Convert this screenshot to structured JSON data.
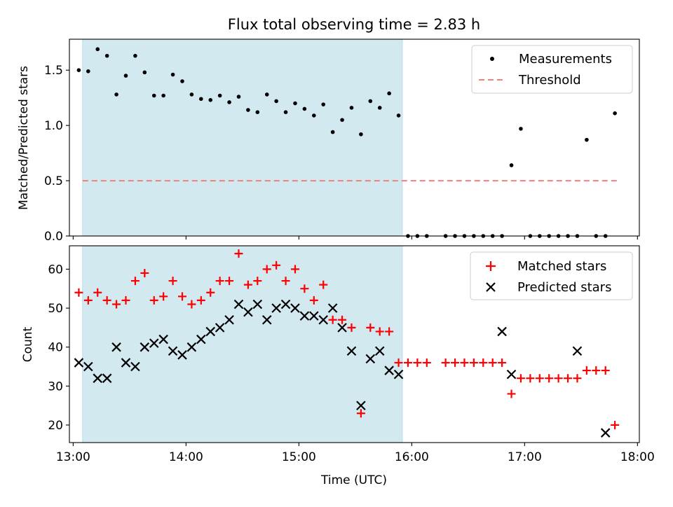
{
  "chart_data": [
    {
      "type": "scatter",
      "title": "Flux total observing time = 2.83 h",
      "ylabel": "Matched/Predicted stars",
      "xlabel": "",
      "xlim": [
        "12:58",
        "18:01"
      ],
      "ylim": [
        0,
        1.78
      ],
      "x_ticks": [
        "13:00",
        "14:00",
        "15:00",
        "16:00",
        "17:00",
        "18:00"
      ],
      "y_ticks": [
        0,
        0.5,
        1.0,
        1.5
      ],
      "y_tick_labels": [
        "0.0",
        "0.5",
        "1.0",
        "1.5"
      ],
      "shaded_region": {
        "x": [
          "13:05",
          "15:55"
        ],
        "color": "#d3e9f0"
      },
      "threshold": {
        "name": "Threshold",
        "y": 0.5,
        "x": [
          "13:05",
          "17:50"
        ],
        "color": "#f08080"
      },
      "legend": {
        "placement": "top-right",
        "entries": [
          "Measurements",
          "Threshold"
        ]
      },
      "series": [
        {
          "name": "Measurements",
          "marker": "dot",
          "color": "#000000",
          "x": [
            "13:03",
            "13:08",
            "13:13",
            "13:18",
            "13:23",
            "13:28",
            "13:33",
            "13:38",
            "13:43",
            "13:48",
            "13:53",
            "13:58",
            "14:03",
            "14:08",
            "14:13",
            "14:18",
            "14:23",
            "14:28",
            "14:33",
            "14:38",
            "14:43",
            "14:48",
            "14:53",
            "14:58",
            "15:03",
            "15:08",
            "15:13",
            "15:18",
            "15:23",
            "15:28",
            "15:33",
            "15:38",
            "15:43",
            "15:48",
            "15:53",
            "15:58",
            "16:03",
            "16:08",
            "16:18",
            "16:23",
            "16:28",
            "16:33",
            "16:38",
            "16:43",
            "16:48",
            "16:53",
            "16:58",
            "17:03",
            "17:08",
            "17:13",
            "17:18",
            "17:23",
            "17:28",
            "17:33",
            "17:38",
            "17:43",
            "17:48"
          ],
          "values": [
            1.5,
            1.49,
            1.69,
            1.63,
            1.28,
            1.45,
            1.63,
            1.48,
            1.27,
            1.27,
            1.46,
            1.4,
            1.28,
            1.24,
            1.23,
            1.27,
            1.21,
            1.26,
            1.14,
            1.12,
            1.28,
            1.22,
            1.12,
            1.2,
            1.15,
            1.09,
            1.19,
            0.94,
            1.05,
            1.16,
            0.92,
            1.22,
            1.16,
            1.29,
            1.09,
            0,
            0,
            0,
            0,
            0,
            0,
            0,
            0,
            0,
            0,
            0.64,
            0.97,
            0,
            0,
            0,
            0,
            0,
            0,
            0.87,
            0,
            0,
            1.11
          ]
        }
      ]
    },
    {
      "type": "scatter",
      "title": "",
      "ylabel": "Count",
      "xlabel": "Time (UTC)",
      "xlim": [
        "12:58",
        "18:01"
      ],
      "ylim": [
        15.5,
        66
      ],
      "x_ticks": [
        "13:00",
        "14:00",
        "15:00",
        "16:00",
        "17:00",
        "18:00"
      ],
      "y_ticks": [
        20,
        30,
        40,
        50,
        60
      ],
      "shaded_region": {
        "x": [
          "13:05",
          "15:55"
        ],
        "color": "#d3e9f0"
      },
      "legend": {
        "placement": "top-right",
        "entries": [
          "Matched stars",
          "Predicted stars"
        ]
      },
      "series": [
        {
          "name": "Matched stars",
          "marker": "plus",
          "color": "#ff0000",
          "x": [
            "13:03",
            "13:08",
            "13:13",
            "13:18",
            "13:23",
            "13:28",
            "13:33",
            "13:38",
            "13:43",
            "13:48",
            "13:53",
            "13:58",
            "14:03",
            "14:08",
            "14:13",
            "14:18",
            "14:23",
            "14:28",
            "14:33",
            "14:38",
            "14:43",
            "14:48",
            "14:53",
            "14:58",
            "15:03",
            "15:08",
            "15:13",
            "15:18",
            "15:23",
            "15:28",
            "15:33",
            "15:38",
            "15:43",
            "15:48",
            "15:53",
            "15:58",
            "16:03",
            "16:08",
            "16:18",
            "16:23",
            "16:28",
            "16:33",
            "16:38",
            "16:43",
            "16:48",
            "16:53",
            "16:58",
            "17:03",
            "17:08",
            "17:13",
            "17:18",
            "17:23",
            "17:28",
            "17:33",
            "17:38",
            "17:43",
            "17:48"
          ],
          "values": [
            54,
            52,
            54,
            52,
            51,
            52,
            57,
            59,
            52,
            53,
            57,
            53,
            51,
            52,
            54,
            57,
            57,
            64,
            56,
            57,
            60,
            61,
            57,
            60,
            55,
            52,
            56,
            47,
            47,
            45,
            23,
            45,
            44,
            44,
            36,
            36,
            36,
            36,
            36,
            36,
            36,
            36,
            36,
            36,
            36,
            28,
            32,
            32,
            32,
            32,
            32,
            32,
            32,
            34,
            34,
            34,
            20
          ]
        },
        {
          "name": "Predicted stars",
          "marker": "x",
          "color": "#000000",
          "x": [
            "13:03",
            "13:08",
            "13:13",
            "13:18",
            "13:23",
            "13:28",
            "13:33",
            "13:38",
            "13:43",
            "13:48",
            "13:53",
            "13:58",
            "14:03",
            "14:08",
            "14:13",
            "14:18",
            "14:23",
            "14:28",
            "14:33",
            "14:38",
            "14:43",
            "14:48",
            "14:53",
            "14:58",
            "15:03",
            "15:08",
            "15:13",
            "15:18",
            "15:23",
            "15:28",
            "15:33",
            "15:38",
            "15:43",
            "15:48",
            "15:53",
            "16:48",
            "16:53",
            "17:28",
            "17:43"
          ],
          "values": [
            36,
            35,
            32,
            32,
            40,
            36,
            35,
            40,
            41,
            42,
            39,
            38,
            40,
            42,
            44,
            45,
            47,
            51,
            49,
            51,
            47,
            50,
            51,
            50,
            48,
            48,
            47,
            50,
            45,
            39,
            25,
            37,
            39,
            34,
            33,
            44,
            33,
            39,
            18
          ]
        }
      ]
    }
  ]
}
